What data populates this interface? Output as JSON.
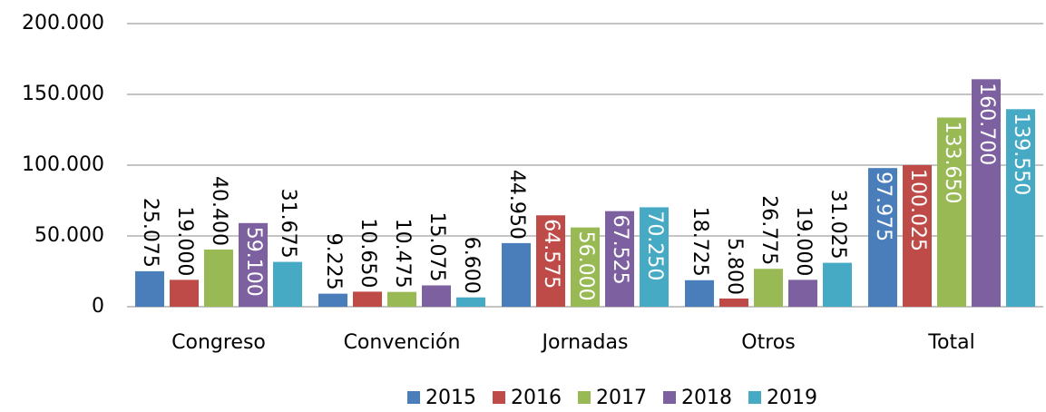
{
  "chart_data": {
    "type": "bar",
    "categories": [
      "Congreso",
      "Convención",
      "Jornadas",
      "Otros",
      "Total"
    ],
    "series": [
      {
        "name": "2015",
        "color": "#4a7ebb",
        "values": [
          25075,
          9225,
          44950,
          18725,
          97975
        ],
        "value_labels": [
          "25.075",
          "9.225",
          "44.950",
          "18.725",
          "97.975"
        ]
      },
      {
        "name": "2016",
        "color": "#be4b48",
        "values": [
          19000,
          10650,
          64575,
          5800,
          100025
        ],
        "value_labels": [
          "19.000",
          "10.650",
          "64.575",
          "5.800",
          "100.025"
        ]
      },
      {
        "name": "2017",
        "color": "#98b954",
        "values": [
          40400,
          10475,
          56000,
          26775,
          133650
        ],
        "value_labels": [
          "40.400",
          "10.475",
          "56.000",
          "26.775",
          "133.650"
        ]
      },
      {
        "name": "2018",
        "color": "#7d60a0",
        "values": [
          59100,
          15075,
          67525,
          19000,
          160700
        ],
        "value_labels": [
          "59.100",
          "15.075",
          "67.525",
          "19.000",
          "160.700"
        ]
      },
      {
        "name": "2019",
        "color": "#46aac5",
        "values": [
          31675,
          6600,
          70250,
          31025,
          139550
        ],
        "value_labels": [
          "31.675",
          "6.600",
          "70.250",
          "31.025",
          "139.550"
        ]
      }
    ],
    "ylim": [
      0,
      200000
    ],
    "yticks": [
      0,
      {
        "value": 50000,
        "label": "50.000"
      },
      {
        "value": 100000,
        "label": "100.000"
      },
      {
        "value": 150000,
        "label": "150.000"
      },
      {
        "value": 200000,
        "label": "200.000"
      }
    ],
    "grid": true,
    "legend": "bottom"
  }
}
